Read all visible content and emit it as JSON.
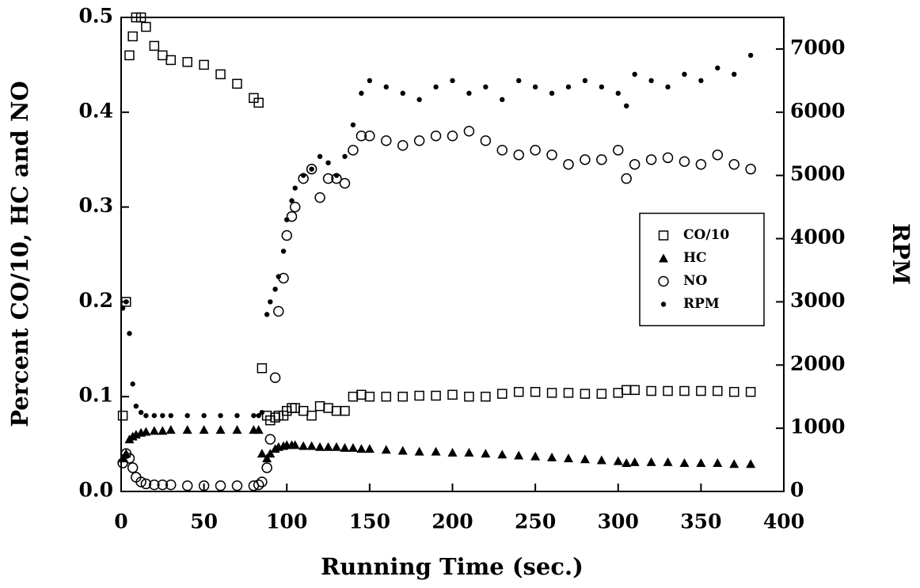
{
  "chart_data": {
    "type": "scatter",
    "xlabel": "Running Time (sec.)",
    "ylabel": "Percent CO/10, HC and NO",
    "y2label": "RPM",
    "x": [
      1,
      3,
      5,
      7,
      9,
      12,
      15,
      20,
      25,
      30,
      40,
      50,
      60,
      70,
      80,
      83,
      85,
      88,
      90,
      93,
      95,
      98,
      100,
      103,
      105,
      110,
      115,
      120,
      125,
      130,
      135,
      140,
      145,
      150,
      160,
      170,
      180,
      190,
      200,
      210,
      220,
      230,
      240,
      250,
      260,
      270,
      280,
      290,
      300,
      305,
      310,
      320,
      330,
      340,
      350,
      360,
      370,
      380
    ],
    "series": [
      {
        "name": "CO/10",
        "color": "#000000",
        "marker": "square",
        "values": [
          0.08,
          0.2,
          0.46,
          0.48,
          0.5,
          0.5,
          0.49,
          0.47,
          0.46,
          0.455,
          0.453,
          0.45,
          0.44,
          0.43,
          0.415,
          0.41,
          0.13,
          0.08,
          0.075,
          0.078,
          0.08,
          0.08,
          0.085,
          0.088,
          0.088,
          0.085,
          0.08,
          0.09,
          0.088,
          0.085,
          0.085,
          0.1,
          0.102,
          0.1,
          0.1,
          0.1,
          0.101,
          0.101,
          0.102,
          0.1,
          0.1,
          0.103,
          0.105,
          0.105,
          0.104,
          0.104,
          0.103,
          0.103,
          0.104,
          0.107,
          0.107,
          0.106,
          0.106,
          0.106,
          0.106,
          0.106,
          0.105,
          0.105
        ]
      },
      {
        "name": "HC",
        "color": "#000000",
        "marker": "triangle",
        "values": [
          0.035,
          0.04,
          0.055,
          0.058,
          0.06,
          0.062,
          0.063,
          0.064,
          0.064,
          0.065,
          0.065,
          0.065,
          0.065,
          0.065,
          0.065,
          0.065,
          0.04,
          0.035,
          0.04,
          0.045,
          0.047,
          0.048,
          0.049,
          0.049,
          0.049,
          0.048,
          0.048,
          0.047,
          0.047,
          0.047,
          0.046,
          0.046,
          0.045,
          0.045,
          0.044,
          0.043,
          0.042,
          0.042,
          0.041,
          0.041,
          0.04,
          0.039,
          0.038,
          0.037,
          0.036,
          0.035,
          0.034,
          0.033,
          0.032,
          0.03,
          0.031,
          0.031,
          0.031,
          0.03,
          0.03,
          0.03,
          0.029,
          0.029
        ]
      },
      {
        "name": "NO",
        "color": "#000000",
        "marker": "circle",
        "values": [
          0.03,
          0.04,
          0.035,
          0.025,
          0.015,
          0.01,
          0.008,
          0.007,
          0.007,
          0.007,
          0.006,
          0.006,
          0.006,
          0.006,
          0.006,
          0.007,
          0.01,
          0.025,
          0.055,
          0.12,
          0.19,
          0.225,
          0.27,
          0.29,
          0.3,
          0.33,
          0.34,
          0.31,
          0.33,
          0.33,
          0.325,
          0.36,
          0.375,
          0.375,
          0.37,
          0.365,
          0.37,
          0.375,
          0.375,
          0.38,
          0.37,
          0.36,
          0.355,
          0.36,
          0.355,
          0.345,
          0.35,
          0.35,
          0.36,
          0.33,
          0.345,
          0.35,
          0.352,
          0.348,
          0.345,
          0.355,
          0.345,
          0.34
        ]
      },
      {
        "name": "RPM",
        "color": "#000000",
        "marker": "dot",
        "axis": "y2",
        "values": [
          2900,
          3000,
          2500,
          1700,
          1350,
          1250,
          1200,
          1200,
          1200,
          1200,
          1200,
          1200,
          1200,
          1200,
          1200,
          1200,
          1250,
          2800,
          3000,
          3200,
          3400,
          3800,
          4300,
          4600,
          4800,
          5000,
          5100,
          5300,
          5200,
          5000,
          5300,
          5800,
          6300,
          6500,
          6400,
          6300,
          6200,
          6400,
          6500,
          6300,
          6400,
          6200,
          6500,
          6400,
          6300,
          6400,
          6500,
          6400,
          6300,
          6100,
          6600,
          6500,
          6400,
          6600,
          6500,
          6700,
          6600,
          6900
        ]
      }
    ],
    "xlim": [
      0,
      400
    ],
    "xticks": [
      0,
      50,
      100,
      150,
      200,
      250,
      300,
      350,
      400
    ],
    "ylim": [
      0,
      0.5
    ],
    "yticks": [
      {
        "value": 0,
        "label": "0.0"
      },
      0.1,
      0.2,
      0.3,
      0.4,
      0.5
    ],
    "y2lim": [
      0,
      7500
    ],
    "y2ticks": [
      0,
      1000,
      2000,
      3000,
      4000,
      5000,
      6000,
      7000
    ],
    "legend": "center right"
  }
}
